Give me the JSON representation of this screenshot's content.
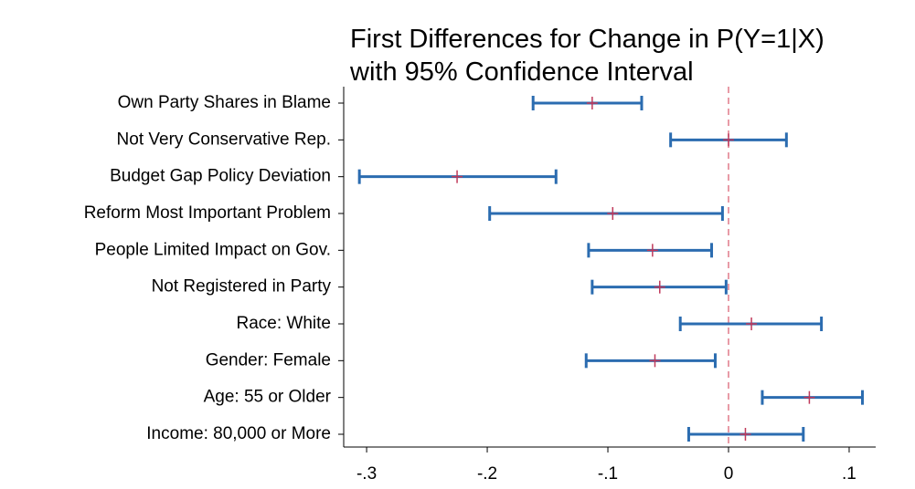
{
  "chart_data": {
    "type": "coefplot",
    "title": [
      "First Differences for Change in P(Y=1|X)",
      "with 95% Confidence Interval"
    ],
    "categories": [
      "Own Party Shares in Blame",
      "Not Very Conservative Rep.",
      "Budget Gap Policy Deviation",
      "Reform Most Important Problem",
      "People Limited Impact on Gov.",
      "Not Registered in Party",
      "Race: White",
      "Gender: Female",
      "Age: 55 or Older",
      "Income: 80,000 or More"
    ],
    "series": [
      {
        "values": [
          -0.113,
          0.0,
          -0.225,
          -0.096,
          -0.063,
          -0.057,
          0.019,
          -0.061,
          0.067,
          0.014
        ],
        "lower": [
          -0.162,
          -0.048,
          -0.306,
          -0.198,
          -0.116,
          -0.113,
          -0.04,
          -0.118,
          0.028,
          -0.033
        ],
        "upper": [
          -0.072,
          0.048,
          -0.143,
          -0.005,
          -0.014,
          -0.002,
          0.077,
          -0.011,
          0.111,
          0.062
        ],
        "color": "#2b6cb0",
        "marker_color": "#c0395a"
      }
    ],
    "xlim": [
      -0.319,
      0.122
    ],
    "xticks": [
      {
        "value": -0.3,
        "label": "-.3"
      },
      {
        "value": -0.2,
        "label": "-.2"
      },
      {
        "value": -0.1,
        "label": "-.1"
      },
      {
        "value": 0,
        "label": "0"
      },
      {
        "value": 0.1,
        "label": ".1"
      }
    ],
    "reference_line": 0,
    "reference_color": "#e07a8a"
  }
}
